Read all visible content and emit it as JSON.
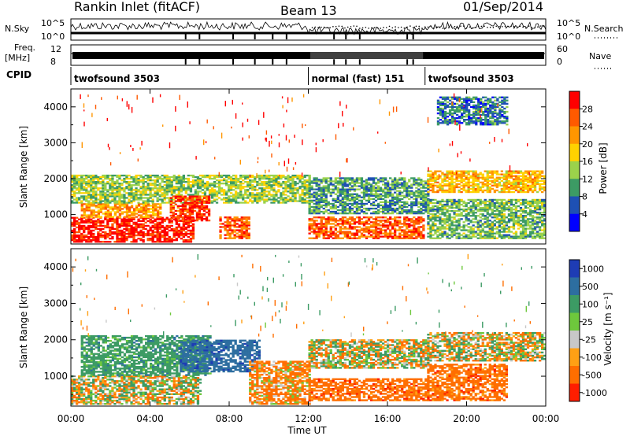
{
  "header": {
    "station": "Rankin Inlet (fitACF)",
    "beam": "Beam 13",
    "date": "01/Sep/2014"
  },
  "top_panels": {
    "nsky_label": "N.Sky",
    "nsky_ticks": [
      "10^5",
      "10^0"
    ],
    "nsearch_label": "N.Search",
    "nsearch_ticks": [
      "10^5",
      "10^0"
    ],
    "freq_label": "Freq.",
    "freq_unit": "[MHz]",
    "freq_ticks": [
      "12",
      "8"
    ],
    "nave_label": "Nave",
    "nave_ticks": [
      "60",
      "0"
    ],
    "cpid_label": "CPID",
    "modes": [
      {
        "name": "twofsound 3503",
        "start_h": 0,
        "end_h": 12.0
      },
      {
        "name": "normal (fast) 151",
        "start_h": 12.0,
        "end_h": 17.9
      },
      {
        "name": "twofsound 3503",
        "start_h": 17.9,
        "end_h": 24
      }
    ]
  },
  "power_colorbar": {
    "label": "Power [dB]",
    "ticks": [
      "28",
      "24",
      "20",
      "16",
      "12",
      "8",
      "4"
    ],
    "colors": [
      "#ff0000",
      "#ff5a00",
      "#ff9600",
      "#ffd200",
      "#9bd24b",
      "#3c9b64",
      "#1e50b4",
      "#0000ff"
    ]
  },
  "velocity_colorbar": {
    "label": "Velocity [m s⁻¹]",
    "ticks": [
      "1000",
      "500",
      "100",
      "25",
      "-25",
      "-100",
      "-500",
      "-1000"
    ],
    "colors": [
      "#1e3cb4",
      "#2d6ea0",
      "#3c9b64",
      "#6ec83c",
      "#c8c8c8",
      "#ffa014",
      "#ff6e00",
      "#ff1e00"
    ]
  },
  "chart_data": {
    "type": "heatmap",
    "title": "Rankin Inlet (fitACF)  Beam 13  01/Sep/2014",
    "xlabel": "Time UT",
    "x_ticks": [
      "00:00",
      "04:00",
      "08:00",
      "12:00",
      "16:00",
      "20:00",
      "00:00"
    ],
    "xlim_hours": [
      0,
      24
    ],
    "ylabel": "Slant Range [km]",
    "y_ticks": [
      "4000",
      "3000",
      "2000",
      "1000"
    ],
    "ylim_km": [
      180,
      4500
    ],
    "panels": [
      {
        "name": "power",
        "colorbar_label": "Power [dB]",
        "regions": [
          {
            "t": [
              0,
              6.2
            ],
            "r": [
              200,
              900
            ],
            "level": 28
          },
          {
            "t": [
              0.5,
              4.5
            ],
            "r": [
              900,
              1300
            ],
            "level": 20
          },
          {
            "t": [
              0,
              12
            ],
            "r": [
              1300,
              2100
            ],
            "level": 12
          },
          {
            "t": [
              5,
              7
            ],
            "r": [
              800,
              1500
            ],
            "level": 26
          },
          {
            "t": [
              7.5,
              9
            ],
            "r": [
              300,
              900
            ],
            "level": 24
          },
          {
            "t": [
              12,
              17.8
            ],
            "r": [
              300,
              900
            ],
            "level": 24
          },
          {
            "t": [
              12,
              18
            ],
            "r": [
              1000,
              2000
            ],
            "level": 8
          },
          {
            "t": [
              18,
              24
            ],
            "r": [
              1600,
              2200
            ],
            "level": 18
          },
          {
            "t": [
              18,
              24
            ],
            "r": [
              300,
              1400
            ],
            "level": 10
          },
          {
            "t": [
              18.5,
              22
            ],
            "r": [
              3500,
              4300
            ],
            "level": 6
          }
        ]
      },
      {
        "name": "velocity",
        "colorbar_label": "Velocity [m s⁻¹]",
        "regions": [
          {
            "t": [
              0,
              6.5
            ],
            "r": [
              200,
              1000
            ],
            "level": 0
          },
          {
            "t": [
              0.5,
              7
            ],
            "r": [
              1000,
              2100
            ],
            "level": 300
          },
          {
            "t": [
              5.5,
              9.5
            ],
            "r": [
              1100,
              2000
            ],
            "level": 800
          },
          {
            "t": [
              9,
              12
            ],
            "r": [
              200,
              1400
            ],
            "level": -150
          },
          {
            "t": [
              12,
              18
            ],
            "r": [
              300,
              900
            ],
            "level": -300
          },
          {
            "t": [
              12,
              18
            ],
            "r": [
              1200,
              2000
            ],
            "level": 0
          },
          {
            "t": [
              18,
              24
            ],
            "r": [
              1400,
              2200
            ],
            "level": 0
          },
          {
            "t": [
              18,
              22
            ],
            "r": [
              300,
              1300
            ],
            "level": -300
          }
        ]
      }
    ]
  }
}
